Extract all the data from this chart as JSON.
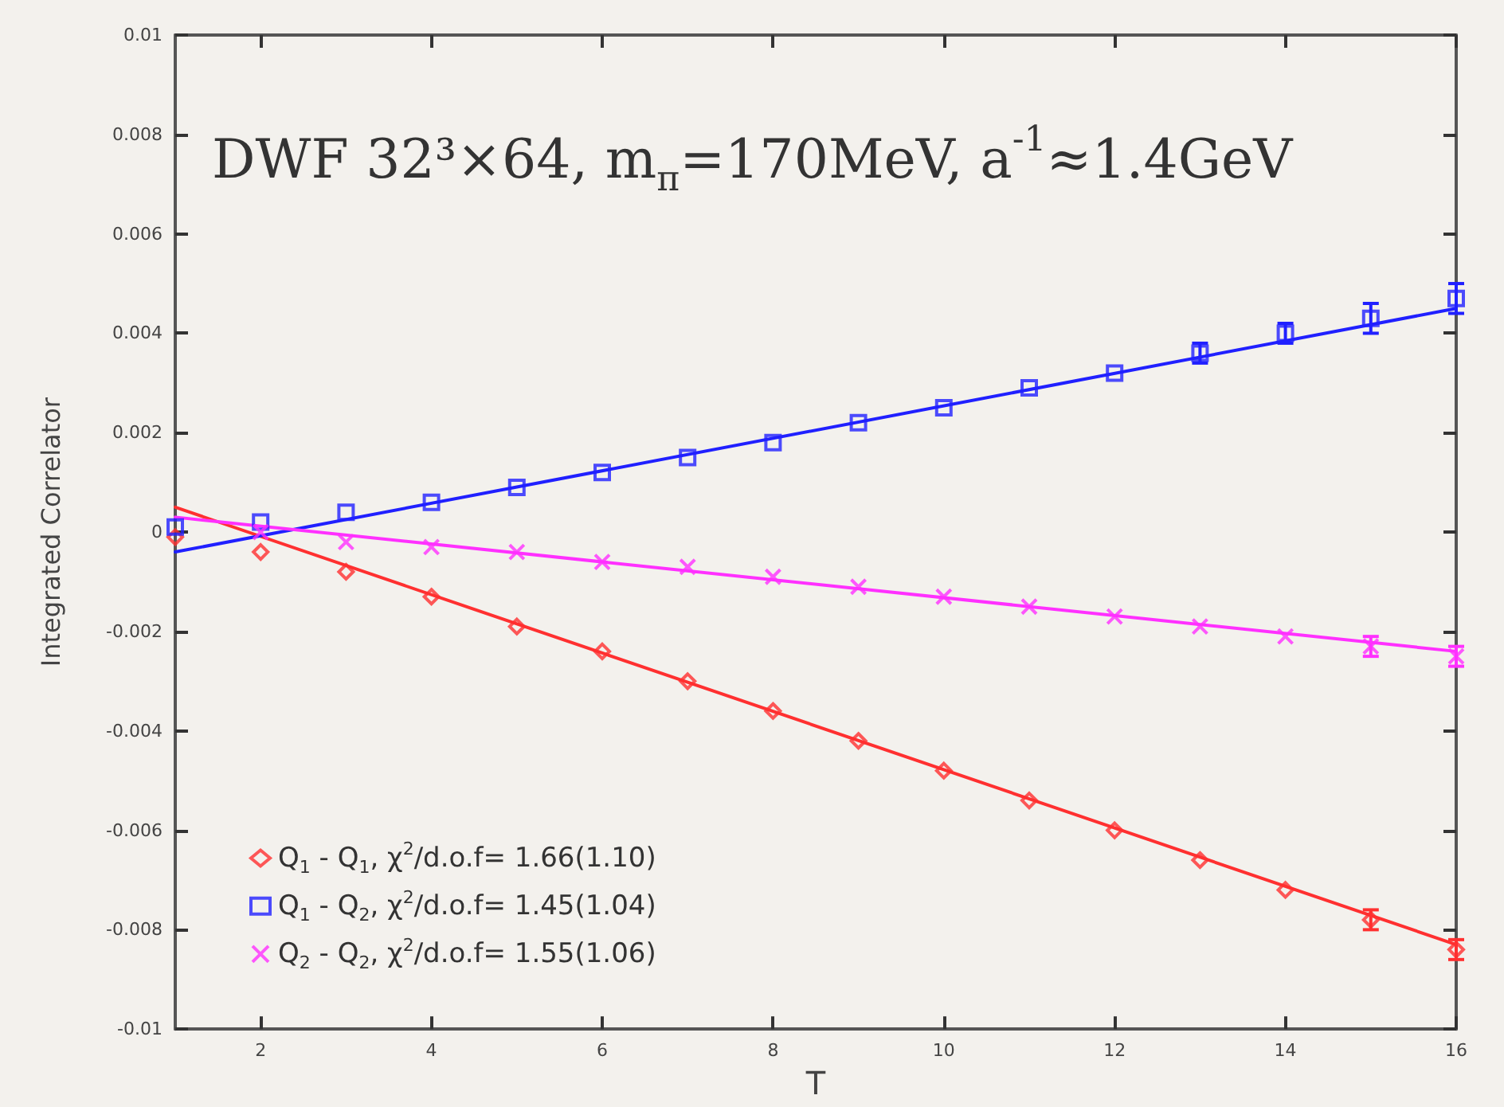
{
  "chart_data": {
    "type": "scatter",
    "title": "DWF 32³×64, m$_{π}$=170MeV, a$^{-1}$≈1.4GeV",
    "xlabel": "T",
    "ylabel": "Integrated Correlator",
    "xlim": [
      1,
      16
    ],
    "xticks": [
      2,
      4,
      6,
      8,
      10,
      12,
      14,
      16
    ],
    "ylim": [
      -0.01,
      0.01
    ],
    "yticks": [
      -0.01,
      -0.008,
      -0.006,
      -0.004,
      -0.002,
      0,
      0.002,
      0.004,
      0.006,
      0.008,
      0.01
    ],
    "grid": false,
    "legend": "bottom left",
    "series": [
      {
        "name": "Q$_{1}$ - Q$_{1}$, χ$^{2}$/d.o.f= 1.66(1.10)",
        "color": "#ff3030",
        "marker": "diamond",
        "x": [
          1,
          2,
          3,
          4,
          5,
          6,
          7,
          8,
          9,
          10,
          11,
          12,
          13,
          14,
          15,
          16
        ],
        "values": [
          -0.0001,
          -0.0004,
          -0.0008,
          -0.0013,
          -0.0019,
          -0.0024,
          -0.003,
          -0.0036,
          -0.0042,
          -0.0048,
          -0.0054,
          -0.006,
          -0.0066,
          -0.0072,
          -0.0078,
          -0.0084
        ],
        "errors": [
          null,
          null,
          null,
          null,
          null,
          null,
          null,
          null,
          null,
          null,
          null,
          null,
          null,
          null,
          0.0002,
          0.0002
        ]
      },
      {
        "name": "Q$_{1}$ - Q$_{2}$, χ$^{2}$/d.o.f= 1.45(1.04)",
        "color": "#2020ff",
        "marker": "square",
        "x": [
          1,
          2,
          3,
          4,
          5,
          6,
          7,
          8,
          9,
          10,
          11,
          12,
          13,
          14,
          15,
          16
        ],
        "values": [
          0.0001,
          0.0002,
          0.0004,
          0.0006,
          0.0009,
          0.0012,
          0.0015,
          0.0018,
          0.0022,
          0.0025,
          0.0029,
          0.0032,
          0.0036,
          0.004,
          0.0043,
          0.0047
        ],
        "errors": [
          null,
          null,
          null,
          null,
          null,
          null,
          null,
          null,
          null,
          null,
          null,
          null,
          0.0002,
          0.0002,
          0.0003,
          0.0003
        ]
      },
      {
        "name": "Q$_{2}$ - Q$_{2}$, χ$^{2}$/d.o.f= 1.55(1.06)",
        "color": "#ff30ff",
        "marker": "cross",
        "x": [
          2,
          3,
          4,
          5,
          6,
          7,
          8,
          9,
          10,
          11,
          12,
          13,
          14,
          15,
          16
        ],
        "values": [
          0,
          -0.0002,
          -0.0003,
          -0.0004,
          -0.0006,
          -0.0007,
          -0.0009,
          -0.0011,
          -0.0013,
          -0.0015,
          -0.0017,
          -0.0019,
          -0.0021,
          -0.0023,
          -0.0025
        ],
        "errors": [
          null,
          null,
          null,
          null,
          null,
          null,
          null,
          null,
          null,
          null,
          null,
          null,
          null,
          0.0002,
          0.0002
        ]
      },
      {
        "type": "line",
        "color": "#ff3030",
        "marker": "none",
        "x": [
          1,
          16
        ],
        "values": [
          0.0005,
          -0.0083
        ]
      },
      {
        "type": "line",
        "color": "#2020ff",
        "marker": "none",
        "x": [
          1,
          16
        ],
        "values": [
          -0.0004,
          0.0045
        ]
      },
      {
        "type": "line",
        "color": "#ff30ff",
        "marker": "none",
        "x": [
          1,
          16
        ],
        "values": [
          0.0003,
          -0.0024
        ]
      }
    ]
  }
}
